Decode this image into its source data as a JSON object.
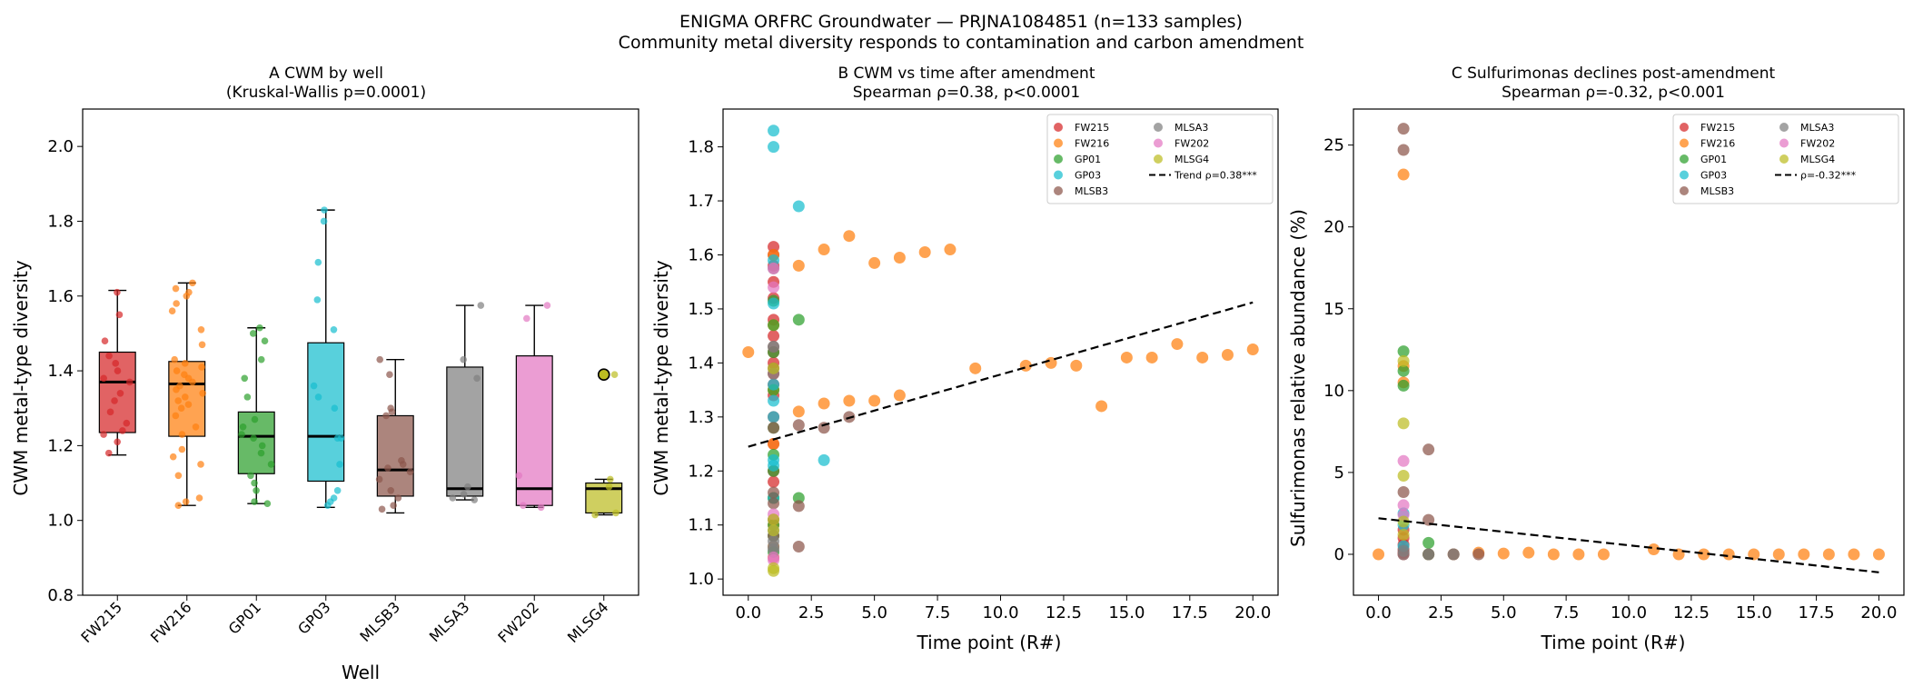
{
  "figure": {
    "suptitle_line1": "ENIGMA ORFRC Groundwater — PRJNA1084851 (n=133 samples)",
    "suptitle_line2": "Community metal diversity responds to contamination and carbon amendment"
  },
  "wells": [
    "FW215",
    "FW216",
    "GP01",
    "GP03",
    "MLSB3",
    "MLSA3",
    "FW202",
    "MLSG4"
  ],
  "colors": {
    "FW215": "#d62728",
    "FW216": "#ff7f0e",
    "GP01": "#2ca02c",
    "GP03": "#17becf",
    "MLSB3": "#8c564b",
    "MLSA3": "#7f7f7f",
    "FW202": "#e377c2",
    "MLSG4": "#bcbd22"
  },
  "chart_data": [
    {
      "type": "box",
      "title_line1": "A  CWM by well",
      "title_line2": "(Kruskal-Wallis p=0.0001)",
      "xlabel": "Well",
      "ylabel": "CWM metal-type diversity",
      "ylim": [
        0.8,
        2.1
      ],
      "yticks": [
        0.8,
        1.0,
        1.2,
        1.4,
        1.6,
        1.8,
        2.0
      ],
      "categories": [
        "FW215",
        "FW216",
        "GP01",
        "GP03",
        "MLSB3",
        "MLSA3",
        "FW202",
        "MLSG4"
      ],
      "boxes": [
        {
          "well": "FW215",
          "whislo": 1.175,
          "q1": 1.235,
          "med": 1.37,
          "q3": 1.45,
          "whishi": 1.615,
          "fliers": []
        },
        {
          "well": "FW216",
          "whislo": 1.04,
          "q1": 1.225,
          "med": 1.365,
          "q3": 1.425,
          "whishi": 1.635,
          "fliers": []
        },
        {
          "well": "GP01",
          "whislo": 1.045,
          "q1": 1.125,
          "med": 1.225,
          "q3": 1.29,
          "whishi": 1.515,
          "fliers": []
        },
        {
          "well": "GP03",
          "whislo": 1.035,
          "q1": 1.105,
          "med": 1.225,
          "q3": 1.475,
          "whishi": 1.83,
          "fliers": []
        },
        {
          "well": "MLSB3",
          "whislo": 1.02,
          "q1": 1.065,
          "med": 1.135,
          "q3": 1.28,
          "whishi": 1.43,
          "fliers": []
        },
        {
          "well": "MLSA3",
          "whislo": 1.055,
          "q1": 1.065,
          "med": 1.085,
          "q3": 1.41,
          "whishi": 1.575,
          "fliers": []
        },
        {
          "well": "FW202",
          "whislo": 1.035,
          "q1": 1.04,
          "med": 1.085,
          "q3": 1.44,
          "whishi": 1.575,
          "fliers": []
        },
        {
          "well": "MLSG4",
          "whislo": 1.015,
          "q1": 1.02,
          "med": 1.085,
          "q3": 1.1,
          "whishi": 1.11,
          "fliers": [
            1.39
          ]
        }
      ],
      "points": [
        {
          "well": "FW215",
          "values": [
            1.61,
            1.55,
            1.48,
            1.44,
            1.42,
            1.4,
            1.38,
            1.37,
            1.34,
            1.32,
            1.29,
            1.26,
            1.24,
            1.23,
            1.21,
            1.18
          ]
        },
        {
          "well": "FW216",
          "values": [
            1.635,
            1.62,
            1.61,
            1.6,
            1.58,
            1.56,
            1.51,
            1.47,
            1.43,
            1.42,
            1.41,
            1.4,
            1.39,
            1.38,
            1.37,
            1.36,
            1.35,
            1.34,
            1.33,
            1.32,
            1.31,
            1.3,
            1.28,
            1.25,
            1.23,
            1.19,
            1.17,
            1.15,
            1.12,
            1.06,
            1.05,
            1.04
          ]
        },
        {
          "well": "GP01",
          "values": [
            1.515,
            1.5,
            1.48,
            1.43,
            1.38,
            1.33,
            1.27,
            1.25,
            1.23,
            1.22,
            1.2,
            1.18,
            1.15,
            1.12,
            1.1,
            1.08,
            1.05,
            1.045
          ]
        },
        {
          "well": "GP03",
          "values": [
            1.83,
            1.8,
            1.69,
            1.59,
            1.51,
            1.36,
            1.33,
            1.3,
            1.22,
            1.22,
            1.15,
            1.08,
            1.06,
            1.05,
            1.04
          ]
        },
        {
          "well": "MLSB3",
          "values": [
            1.43,
            1.39,
            1.3,
            1.28,
            1.29,
            1.16,
            1.15,
            1.14,
            1.13,
            1.11,
            1.08,
            1.06,
            1.04,
            1.03
          ]
        },
        {
          "well": "MLSA3",
          "values": [
            1.575,
            1.43,
            1.38,
            1.09,
            1.07,
            1.06,
            1.055
          ]
        },
        {
          "well": "FW202",
          "values": [
            1.575,
            1.54,
            1.12,
            1.04,
            1.035
          ]
        },
        {
          "well": "MLSG4",
          "values": [
            1.11,
            1.09,
            1.02,
            1.015,
            1.39
          ]
        }
      ]
    },
    {
      "type": "scatter",
      "title_line1": "B  CWM vs time after amendment",
      "title_line2": "Spearman ρ=0.38, p<0.0001",
      "xlabel": "Time point (R#)",
      "ylabel": "CWM metal-type diversity",
      "xlim": [
        -1.0,
        21.0
      ],
      "ylim": [
        0.97,
        1.87
      ],
      "xticks": [
        0.0,
        2.5,
        5.0,
        7.5,
        10.0,
        12.5,
        15.0,
        17.5,
        20.0
      ],
      "xtick_labels": [
        "0.0",
        "2.5",
        "5.0",
        "7.5",
        "10.0",
        "12.5",
        "15.0",
        "17.5",
        "20.0"
      ],
      "yticks": [
        1.0,
        1.1,
        1.2,
        1.3,
        1.4,
        1.5,
        1.6,
        1.7,
        1.8
      ],
      "legend_position": "top-right",
      "trend_label": "Trend ρ=0.38***",
      "trend": {
        "x": [
          0,
          20
        ],
        "y": [
          1.245,
          1.512
        ]
      },
      "series": [
        {
          "name": "FW215",
          "points": [
            [
              1,
              1.615
            ],
            [
              1,
              1.6
            ],
            [
              1,
              1.58
            ],
            [
              1,
              1.55
            ],
            [
              1,
              1.52
            ],
            [
              1,
              1.48
            ],
            [
              1,
              1.45
            ],
            [
              1,
              1.42
            ],
            [
              1,
              1.4
            ],
            [
              1,
              1.38
            ],
            [
              1,
              1.36
            ],
            [
              1,
              1.34
            ],
            [
              1,
              1.3
            ],
            [
              1,
              1.25
            ],
            [
              1,
              1.2
            ],
            [
              1,
              1.18
            ]
          ]
        },
        {
          "name": "FW216",
          "points": [
            [
              0,
              1.42
            ],
            [
              1,
              1.6
            ],
            [
              2,
              1.58
            ],
            [
              3,
              1.61
            ],
            [
              4,
              1.635
            ],
            [
              5,
              1.585
            ],
            [
              6,
              1.595
            ],
            [
              7,
              1.605
            ],
            [
              8,
              1.61
            ],
            [
              2,
              1.31
            ],
            [
              3,
              1.325
            ],
            [
              4,
              1.33
            ],
            [
              5,
              1.33
            ],
            [
              6,
              1.34
            ],
            [
              9,
              1.39
            ],
            [
              11,
              1.395
            ],
            [
              12,
              1.4
            ],
            [
              13,
              1.395
            ],
            [
              14,
              1.32
            ],
            [
              15,
              1.41
            ],
            [
              16,
              1.41
            ],
            [
              17,
              1.435
            ],
            [
              18,
              1.41
            ],
            [
              19,
              1.415
            ],
            [
              20,
              1.425
            ],
            [
              1,
              1.47
            ],
            [
              1,
              1.35
            ],
            [
              1,
              1.25
            ],
            [
              1,
              1.15
            ],
            [
              1,
              1.1
            ],
            [
              1,
              1.06
            ],
            [
              1,
              1.04
            ]
          ]
        },
        {
          "name": "GP01",
          "points": [
            [
              2,
              1.48
            ],
            [
              2,
              1.15
            ],
            [
              1,
              1.515
            ],
            [
              1,
              1.47
            ],
            [
              1,
              1.42
            ],
            [
              1,
              1.35
            ],
            [
              1,
              1.28
            ],
            [
              1,
              1.23
            ],
            [
              1,
              1.2
            ],
            [
              1,
              1.15
            ],
            [
              1,
              1.1
            ],
            [
              1,
              1.08
            ],
            [
              1,
              1.05
            ]
          ]
        },
        {
          "name": "GP03",
          "points": [
            [
              1,
              1.83
            ],
            [
              1,
              1.8
            ],
            [
              2,
              1.69
            ],
            [
              3,
              1.22
            ],
            [
              1,
              1.59
            ],
            [
              1,
              1.51
            ],
            [
              1,
              1.36
            ],
            [
              1,
              1.33
            ],
            [
              1,
              1.3
            ],
            [
              1,
              1.22
            ],
            [
              1,
              1.21
            ],
            [
              1,
              1.15
            ]
          ]
        },
        {
          "name": "MLSB3",
          "points": [
            [
              2,
              1.285
            ],
            [
              2,
              1.135
            ],
            [
              2,
              1.06
            ],
            [
              3,
              1.28
            ],
            [
              4,
              1.3
            ],
            [
              1,
              1.43
            ],
            [
              1,
              1.39
            ],
            [
              1,
              1.28
            ],
            [
              1,
              1.16
            ],
            [
              1,
              1.14
            ],
            [
              1,
              1.11
            ],
            [
              1,
              1.08
            ]
          ]
        },
        {
          "name": "MLSA3",
          "points": [
            [
              1,
              1.575
            ],
            [
              1,
              1.43
            ],
            [
              1,
              1.38
            ],
            [
              1,
              1.09
            ],
            [
              1,
              1.07
            ],
            [
              1,
              1.06
            ],
            [
              1,
              1.055
            ]
          ]
        },
        {
          "name": "FW202",
          "points": [
            [
              1,
              1.575
            ],
            [
              1,
              1.54
            ],
            [
              1,
              1.12
            ],
            [
              1,
              1.04
            ],
            [
              1,
              1.035
            ]
          ]
        },
        {
          "name": "MLSG4",
          "points": [
            [
              1,
              1.39
            ],
            [
              1,
              1.11
            ],
            [
              1,
              1.09
            ],
            [
              1,
              1.02
            ],
            [
              1,
              1.015
            ]
          ]
        }
      ]
    },
    {
      "type": "scatter",
      "title_line1": "C  Sulfurimonas declines post-amendment",
      "title_line2": "Spearman ρ=-0.32, p<0.001",
      "xlabel": "Time point (R#)",
      "ylabel": "Sulfurimonas relative abundance (%)",
      "xlim": [
        -1.0,
        21.0
      ],
      "ylim": [
        -2.5,
        27.2
      ],
      "xticks": [
        0.0,
        2.5,
        5.0,
        7.5,
        10.0,
        12.5,
        15.0,
        17.5,
        20.0
      ],
      "xtick_labels": [
        "0.0",
        "2.5",
        "5.0",
        "7.5",
        "10.0",
        "12.5",
        "15.0",
        "17.5",
        "20.0"
      ],
      "yticks": [
        0,
        5,
        10,
        15,
        20,
        25
      ],
      "legend_position": "top-right",
      "trend_label": "ρ=-0.32***",
      "trend": {
        "x": [
          0,
          20
        ],
        "y": [
          2.2,
          -1.1
        ]
      },
      "series": [
        {
          "name": "FW215",
          "points": [
            [
              1,
              1.5
            ],
            [
              1,
              1.0
            ],
            [
              1,
              0.6
            ],
            [
              1,
              0.3
            ],
            [
              1,
              0.1
            ],
            [
              1,
              0.0
            ]
          ]
        },
        {
          "name": "FW216",
          "points": [
            [
              0,
              0.0
            ],
            [
              1,
              23.2
            ],
            [
              1,
              11.5
            ],
            [
              1,
              10.5
            ],
            [
              2,
              0.0
            ],
            [
              3,
              0.0
            ],
            [
              4,
              0.1
            ],
            [
              5,
              0.05
            ],
            [
              6,
              0.1
            ],
            [
              7,
              0.0
            ],
            [
              8,
              0.0
            ],
            [
              9,
              0.0
            ],
            [
              11,
              0.3
            ],
            [
              12,
              0.0
            ],
            [
              13,
              0.0
            ],
            [
              14,
              0.0
            ],
            [
              15,
              0.0
            ],
            [
              16,
              0.0
            ],
            [
              17,
              0.0
            ],
            [
              18,
              0.0
            ],
            [
              19,
              0.0
            ],
            [
              20,
              0.0
            ]
          ]
        },
        {
          "name": "GP01",
          "points": [
            [
              1,
              12.4
            ],
            [
              1,
              11.2
            ],
            [
              1,
              10.3
            ],
            [
              2,
              0.7
            ],
            [
              2,
              0.0
            ]
          ]
        },
        {
          "name": "GP03",
          "points": [
            [
              1,
              2.5
            ],
            [
              1,
              1.8
            ],
            [
              1,
              0.5
            ]
          ]
        },
        {
          "name": "MLSB3",
          "points": [
            [
              1,
              26.0
            ],
            [
              1,
              24.7
            ],
            [
              1,
              3.8
            ],
            [
              2,
              6.4
            ],
            [
              2,
              2.1
            ],
            [
              2,
              0.0
            ],
            [
              3,
              0.0
            ],
            [
              4,
              0.0
            ]
          ]
        },
        {
          "name": "MLSA3",
          "points": [
            [
              1,
              0.2
            ],
            [
              1,
              0.0
            ],
            [
              2,
              0.0
            ],
            [
              3,
              0.0
            ]
          ]
        },
        {
          "name": "FW202",
          "points": [
            [
              1,
              5.7
            ],
            [
              1,
              3.0
            ],
            [
              1,
              2.4
            ]
          ]
        },
        {
          "name": "MLSG4",
          "points": [
            [
              1,
              11.8
            ],
            [
              1,
              8.0
            ],
            [
              1,
              4.8
            ],
            [
              1,
              2.0
            ],
            [
              1,
              1.2
            ]
          ]
        }
      ]
    }
  ]
}
